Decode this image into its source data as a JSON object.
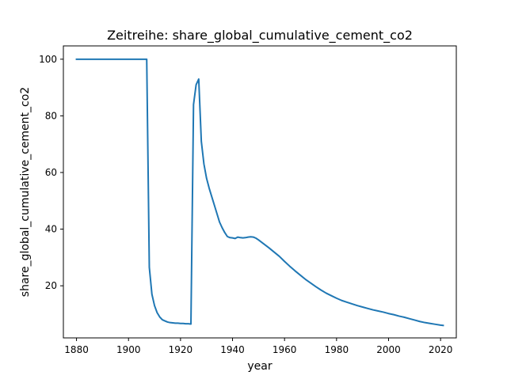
{
  "chart_data": {
    "type": "line",
    "title": "Zeitreihe: share_global_cumulative_cement_co2",
    "xlabel": "year",
    "ylabel": "share_global_cumulative_cement_co2",
    "xlim": [
      1874.95,
      2026.05
    ],
    "ylim": [
      1.6,
      104.7
    ],
    "xticks": [
      1880,
      1900,
      1920,
      1940,
      1960,
      1980,
      2000,
      2020
    ],
    "yticks": [
      20,
      40,
      60,
      80,
      100
    ],
    "grid": false,
    "line_color": "#1f77b4",
    "series": [
      {
        "x": [
          1880,
          1881,
          1882,
          1883,
          1884,
          1885,
          1886,
          1887,
          1888,
          1889,
          1890,
          1891,
          1892,
          1893,
          1894,
          1895,
          1896,
          1897,
          1898,
          1899,
          1900,
          1901,
          1902,
          1903,
          1904,
          1905,
          1906,
          1907,
          1908,
          1909,
          1910,
          1911,
          1912,
          1913,
          1914,
          1915,
          1916,
          1917,
          1918,
          1919,
          1920,
          1921,
          1922,
          1923,
          1924,
          1925,
          1926,
          1927,
          1928,
          1929,
          1930,
          1931,
          1932,
          1933,
          1934,
          1935,
          1936,
          1937,
          1938,
          1939,
          1940,
          1941,
          1942,
          1943,
          1944,
          1945,
          1946,
          1947,
          1948,
          1949,
          1950,
          1952,
          1954,
          1956,
          1958,
          1960,
          1962,
          1964,
          1966,
          1968,
          1970,
          1972,
          1974,
          1976,
          1978,
          1980,
          1982,
          1984,
          1986,
          1988,
          1990,
          1992,
          1994,
          1996,
          1998,
          2000,
          2002,
          2004,
          2006,
          2008,
          2010,
          2012,
          2014,
          2016,
          2018,
          2020,
          2021
        ],
        "y": [
          100,
          100,
          100,
          100,
          100,
          100,
          100,
          100,
          100,
          100,
          100,
          100,
          100,
          100,
          100,
          100,
          100,
          100,
          100,
          100,
          100,
          100,
          100,
          100,
          100,
          100,
          100,
          100,
          26.5,
          17.0,
          13.0,
          10.5,
          9.0,
          8.0,
          7.6,
          7.2,
          7.0,
          6.9,
          6.8,
          6.8,
          6.7,
          6.7,
          6.6,
          6.6,
          6.5,
          84.0,
          91.0,
          93.0,
          71.0,
          63.0,
          58.0,
          54.5,
          51.5,
          48.5,
          45.5,
          42.5,
          40.5,
          38.8,
          37.4,
          37.0,
          36.9,
          36.7,
          37.2,
          37.0,
          36.9,
          37.0,
          37.2,
          37.3,
          37.2,
          36.8,
          36.2,
          34.8,
          33.4,
          31.9,
          30.4,
          28.6,
          26.9,
          25.3,
          23.8,
          22.3,
          21.0,
          19.7,
          18.5,
          17.4,
          16.5,
          15.6,
          14.8,
          14.2,
          13.6,
          13.0,
          12.5,
          12.0,
          11.5,
          11.1,
          10.7,
          10.2,
          9.8,
          9.3,
          8.9,
          8.4,
          7.9,
          7.4,
          7.0,
          6.7,
          6.4,
          6.1,
          6.0
        ]
      }
    ]
  }
}
